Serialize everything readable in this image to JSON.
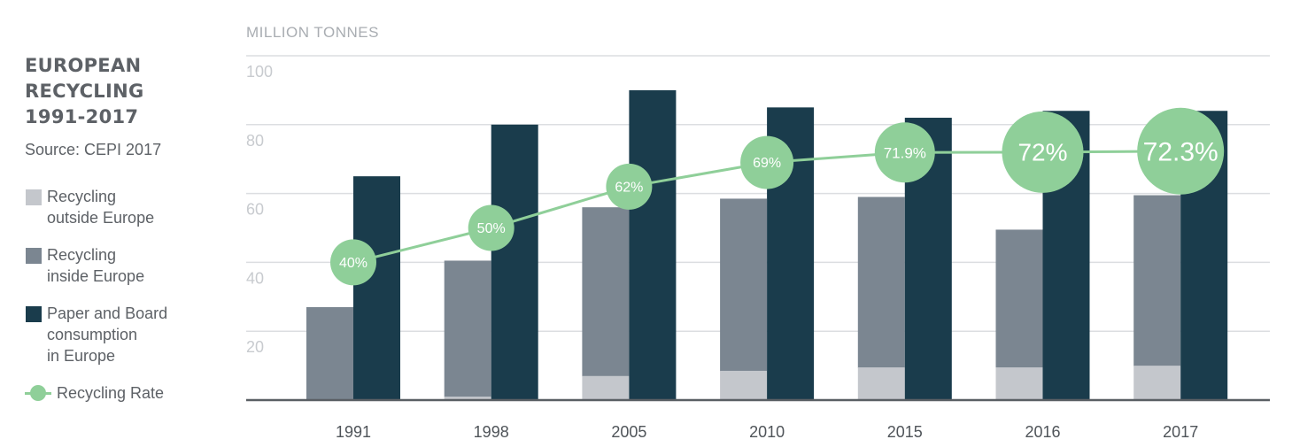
{
  "sidebar": {
    "title_lines": [
      "EUROPEAN",
      "RECYCLING",
      "1991-2017"
    ],
    "source": "Source: CEPI 2017"
  },
  "legend": [
    {
      "label_lines": [
        "Recycling",
        "outside Europe"
      ],
      "color": "#c4c7cc"
    },
    {
      "label_lines": [
        "Recycling",
        "inside Europe"
      ],
      "color": "#7b8691"
    },
    {
      "label_lines": [
        "Paper and Board",
        "consumption",
        "in Europe"
      ],
      "color": "#1a3c4c"
    },
    {
      "label_lines": [
        "Recycling Rate"
      ],
      "color": "#8fcf99"
    }
  ],
  "chart_data": {
    "type": "bar",
    "ylabel": "MILLION TONNES",
    "ylim": [
      0,
      100
    ],
    "yticks": [
      20,
      40,
      60,
      80,
      100
    ],
    "categories": [
      "1991",
      "1998",
      "2005",
      "2010",
      "2015",
      "2016",
      "2017"
    ],
    "series": [
      {
        "name": "Recycling outside Europe",
        "color": "#c4c7cc",
        "stack": "recycling",
        "values": [
          0,
          1,
          7,
          8.5,
          9.5,
          9.5,
          10
        ]
      },
      {
        "name": "Recycling inside Europe",
        "color": "#7b8691",
        "stack": "recycling",
        "values": [
          27,
          39.5,
          49,
          50,
          49.5,
          40,
          49.5
        ]
      },
      {
        "name": "Paper and Board consumption in Europe",
        "color": "#1a3c4c",
        "stack": "consumption",
        "values": [
          65,
          80,
          90,
          85,
          82,
          84,
          84
        ]
      }
    ],
    "line": {
      "name": "Recycling Rate",
      "color": "#8fcf99",
      "values": [
        40,
        50,
        62,
        69,
        71.9,
        72,
        72.3
      ],
      "labels": [
        "40%",
        "50%",
        "62%",
        "69%",
        "71.9%",
        "72%",
        "72.3%"
      ]
    }
  }
}
